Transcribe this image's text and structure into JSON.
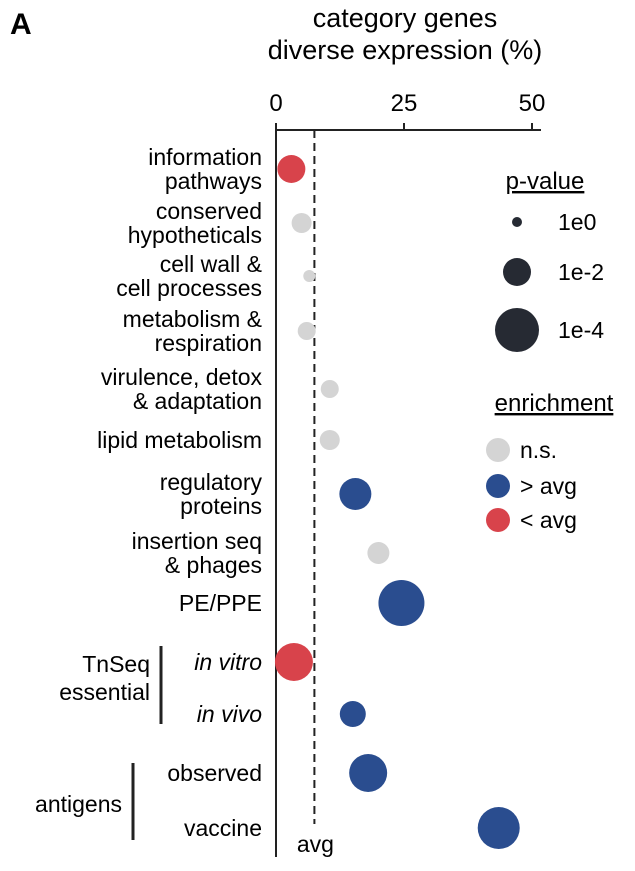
{
  "panel_label": "A",
  "chart_data": {
    "type": "scatter",
    "title": [
      "category genes",
      "diverse expression (%)"
    ],
    "xlim": [
      0,
      52
    ],
    "x_ticks": [
      0,
      25,
      50
    ],
    "avg_value": 7.5,
    "avg_label": "avg",
    "categories": [
      {
        "lines": [
          "information",
          "pathways"
        ],
        "x": 3.0,
        "p": "1e-2",
        "size": 14,
        "enrichment": "lt"
      },
      {
        "lines": [
          "conserved",
          "hypotheticals"
        ],
        "x": 5.0,
        "p": "1e0",
        "size": 10,
        "enrichment": "ns"
      },
      {
        "lines": [
          "cell wall &",
          "cell processes"
        ],
        "x": 6.5,
        "p": "1e0",
        "size": 6,
        "enrichment": "ns"
      },
      {
        "lines": [
          "metabolism &",
          "respiration"
        ],
        "x": 6.0,
        "p": "1e0",
        "size": 9,
        "enrichment": "ns"
      },
      {
        "lines": [
          "virulence, detox",
          "& adaptation"
        ],
        "x": 10.5,
        "p": "1e0",
        "size": 9,
        "enrichment": "ns"
      },
      {
        "lines": [
          "lipid metabolism"
        ],
        "x": 10.5,
        "p": "1e0",
        "size": 10,
        "enrichment": "ns"
      },
      {
        "lines": [
          "regulatory",
          "proteins"
        ],
        "x": 15.5,
        "p": "1e-2",
        "size": 16,
        "enrichment": "gt"
      },
      {
        "lines": [
          "insertion seq",
          "& phages"
        ],
        "x": 20.0,
        "p": "1e0",
        "size": 11,
        "enrichment": "ns"
      },
      {
        "lines": [
          "PE/PPE"
        ],
        "x": 24.5,
        "p": "1e-4",
        "size": 23,
        "enrichment": "gt"
      },
      {
        "lines": [
          "in vitro"
        ],
        "x": 3.5,
        "p": "1e-4",
        "size": 19,
        "enrichment": "lt",
        "italic": true
      },
      {
        "lines": [
          "in vivo"
        ],
        "x": 15.0,
        "p": "1e-2",
        "size": 13,
        "enrichment": "gt",
        "italic": true
      },
      {
        "lines": [
          "observed"
        ],
        "x": 18.0,
        "p": "1e-2",
        "size": 19,
        "enrichment": "gt"
      },
      {
        "lines": [
          "vaccine"
        ],
        "x": 43.5,
        "p": "1e-4",
        "size": 21,
        "enrichment": "gt"
      }
    ],
    "groups": [
      {
        "lines": [
          "TnSeq",
          "essential"
        ]
      },
      {
        "lines": [
          "antigens"
        ]
      }
    ],
    "legend": {
      "pvalue_title": "p-value",
      "pvalue_items": [
        {
          "label": "1e0",
          "size": 5
        },
        {
          "label": "1e-2",
          "size": 14
        },
        {
          "label": "1e-4",
          "size": 22
        }
      ],
      "enrichment_title": "enrichment",
      "enrichment_items": [
        {
          "label": "n.s.",
          "key": "ns"
        },
        {
          "label": "> avg",
          "key": "gt"
        },
        {
          "label": "< avg",
          "key": "lt"
        }
      ]
    },
    "colors": {
      "ns": "#d4d4d4",
      "gt": "#2a4d8f",
      "lt": "#d8434b",
      "legend_size": "#262a33"
    }
  }
}
